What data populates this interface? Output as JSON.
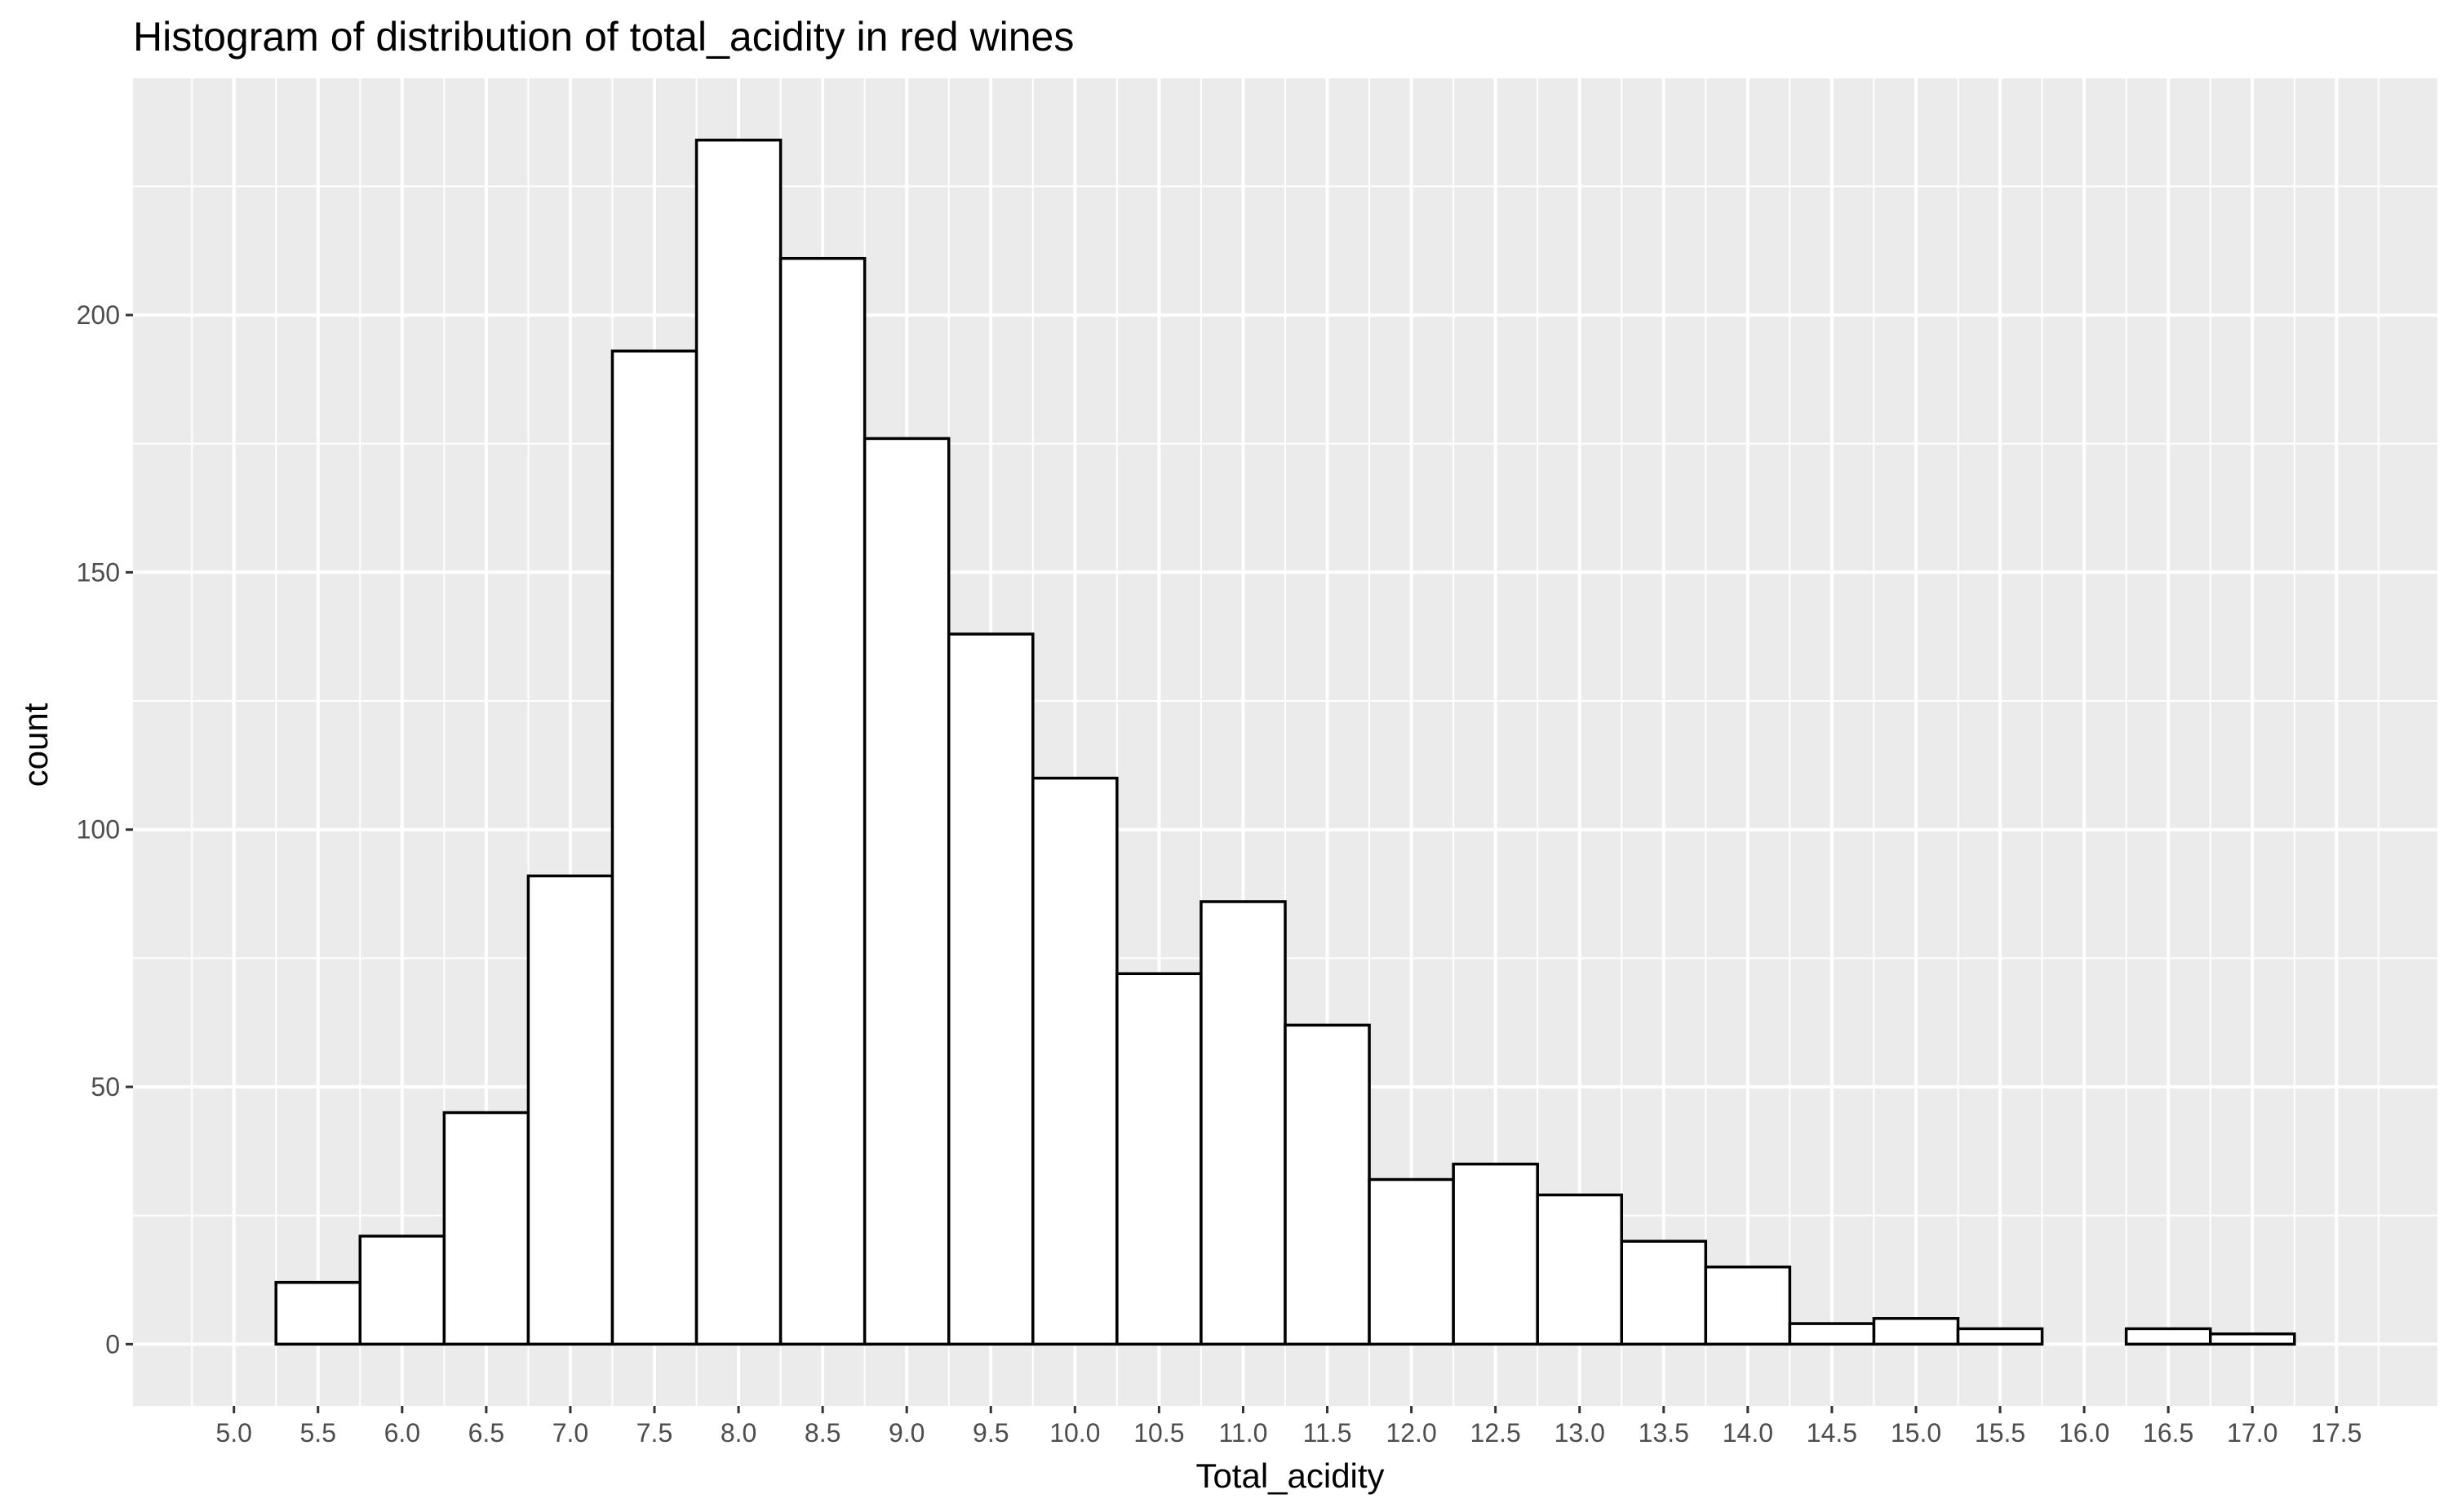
{
  "chart_data": {
    "type": "bar",
    "title": "Histogram of distribution of total_acidity in red wines",
    "xlabel": "Total_acidity",
    "ylabel": "count",
    "bin_width": 0.5,
    "bins": [
      {
        "x": 5.5,
        "count": 12
      },
      {
        "x": 6.0,
        "count": 21
      },
      {
        "x": 6.5,
        "count": 45
      },
      {
        "x": 7.0,
        "count": 91
      },
      {
        "x": 7.5,
        "count": 193
      },
      {
        "x": 8.0,
        "count": 234
      },
      {
        "x": 8.5,
        "count": 211
      },
      {
        "x": 9.0,
        "count": 176
      },
      {
        "x": 9.5,
        "count": 138
      },
      {
        "x": 10.0,
        "count": 110
      },
      {
        "x": 10.5,
        "count": 72
      },
      {
        "x": 11.0,
        "count": 86
      },
      {
        "x": 11.5,
        "count": 62
      },
      {
        "x": 12.0,
        "count": 32
      },
      {
        "x": 12.5,
        "count": 35
      },
      {
        "x": 13.0,
        "count": 29
      },
      {
        "x": 13.5,
        "count": 20
      },
      {
        "x": 14.0,
        "count": 15
      },
      {
        "x": 14.5,
        "count": 4
      },
      {
        "x": 15.0,
        "count": 5
      },
      {
        "x": 15.5,
        "count": 3
      },
      {
        "x": 16.0,
        "count": 0
      },
      {
        "x": 16.5,
        "count": 3
      },
      {
        "x": 17.0,
        "count": 2
      }
    ],
    "xlim": [
      4.4,
      18.1
    ],
    "ylim": [
      -12,
      246
    ],
    "x_ticks": [
      "5.0",
      "5.5",
      "6.0",
      "6.5",
      "7.0",
      "7.5",
      "8.0",
      "8.5",
      "9.0",
      "9.5",
      "10.0",
      "10.5",
      "11.0",
      "11.5",
      "12.0",
      "12.5",
      "13.0",
      "13.5",
      "14.0",
      "14.5",
      "15.0",
      "15.5",
      "16.0",
      "16.5",
      "17.0",
      "17.5"
    ],
    "y_ticks": [
      "0",
      "50",
      "100",
      "150",
      "200"
    ],
    "grid": true,
    "colors": {
      "panel_background": "#ebebeb",
      "grid": "#ffffff",
      "bar_fill": "#ffffff",
      "bar_stroke": "#000000",
      "tick_text": "#4d4d4d",
      "tick_mark": "#333333"
    }
  }
}
